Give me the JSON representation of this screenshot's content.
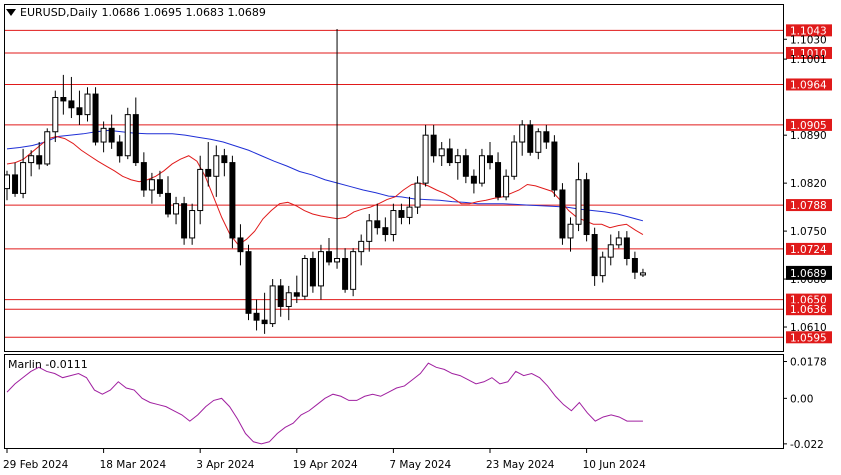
{
  "header": {
    "symbol": "EURUSD,Daily",
    "ohlc": "1.0686 1.0695 1.0683 1.0689"
  },
  "indicator": {
    "label": "Marlin -0.0111",
    "scale": [
      "0.0178",
      "0.00",
      "-0.022"
    ]
  },
  "colors": {
    "bull": "#ffffff",
    "bear": "#000000",
    "ma_slow": "#1f2fd6",
    "ma_fast": "#e01a1a",
    "level": "#e01a1a",
    "marlin": "#a020a0"
  },
  "chart_data": {
    "type": "candlestick",
    "price_axis_ticks": [
      "1.1030",
      "1.1001",
      "1.0890",
      "1.0820",
      "1.0750",
      "1.0680",
      "1.0610"
    ],
    "current_price": "1.0689",
    "levels": [
      "1.1043",
      "1.1010",
      "1.0964",
      "1.0905",
      "1.0788",
      "1.0724",
      "1.0650",
      "1.0636",
      "1.0595"
    ],
    "x_labels": [
      "29 Feb 2024",
      "18 Mar 2024",
      "3 Apr 2024",
      "19 Apr 2024",
      "7 May 2024",
      "23 May 2024",
      "10 Jun 2024"
    ],
    "ylim": [
      1.0575,
      1.108
    ],
    "candles": [
      [
        1.0812,
        1.0838,
        1.0795,
        1.0832
      ],
      [
        1.0832,
        1.085,
        1.08,
        1.0805
      ],
      [
        1.0805,
        1.087,
        1.0798,
        1.085
      ],
      [
        1.085,
        1.0868,
        1.083,
        1.086
      ],
      [
        1.086,
        1.088,
        1.084,
        1.0848
      ],
      [
        1.0848,
        1.09,
        1.0845,
        1.0895
      ],
      [
        1.0895,
        1.0955,
        1.088,
        1.0945
      ],
      [
        1.0945,
        1.0978,
        1.092,
        1.094
      ],
      [
        1.094,
        1.0975,
        1.0915,
        1.093
      ],
      [
        1.093,
        1.0955,
        1.0905,
        1.092
      ],
      [
        1.092,
        1.096,
        1.091,
        1.095
      ],
      [
        1.095,
        1.096,
        1.0875,
        1.088
      ],
      [
        1.088,
        1.091,
        1.0865,
        1.09
      ],
      [
        1.09,
        1.092,
        1.087,
        1.088
      ],
      [
        1.088,
        1.089,
        1.085,
        1.086
      ],
      [
        1.086,
        1.093,
        1.0855,
        1.092
      ],
      [
        1.092,
        1.0945,
        1.0845,
        1.085
      ],
      [
        1.085,
        1.0865,
        1.08,
        1.081
      ],
      [
        1.081,
        1.0835,
        1.079,
        1.0825
      ],
      [
        1.0825,
        1.0838,
        1.08,
        1.0805
      ],
      [
        1.0805,
        1.083,
        1.077,
        1.0775
      ],
      [
        1.0775,
        1.08,
        1.076,
        1.079
      ],
      [
        1.079,
        1.08,
        1.073,
        1.074
      ],
      [
        1.074,
        1.079,
        1.073,
        1.078
      ],
      [
        1.078,
        1.086,
        1.076,
        1.084
      ],
      [
        1.084,
        1.088,
        1.0815,
        1.083
      ],
      [
        1.083,
        1.0875,
        1.08,
        1.086
      ],
      [
        1.086,
        1.087,
        1.083,
        1.085
      ],
      [
        1.085,
        1.086,
        1.0725,
        1.074
      ],
      [
        1.074,
        1.076,
        1.07,
        1.072
      ],
      [
        1.072,
        1.073,
        1.062,
        1.063
      ],
      [
        1.063,
        1.065,
        1.0605,
        1.062
      ],
      [
        1.062,
        1.066,
        1.06,
        1.0615
      ],
      [
        1.0615,
        1.068,
        1.061,
        1.067
      ],
      [
        1.067,
        1.068,
        1.0625,
        1.064
      ],
      [
        1.064,
        1.067,
        1.062,
        1.066
      ],
      [
        1.066,
        1.0685,
        1.0645,
        1.0655
      ],
      [
        1.0655,
        1.0715,
        1.065,
        1.071
      ],
      [
        1.071,
        1.072,
        1.066,
        1.067
      ],
      [
        1.067,
        1.073,
        1.065,
        1.072
      ],
      [
        1.072,
        1.074,
        1.07,
        1.0705
      ],
      [
        1.0705,
        1.1045,
        1.0695,
        1.071
      ],
      [
        1.071,
        1.0725,
        1.066,
        1.0665
      ],
      [
        1.0665,
        1.0725,
        1.0655,
        1.072
      ],
      [
        1.072,
        1.0745,
        1.07,
        1.0735
      ],
      [
        1.0735,
        1.0775,
        1.072,
        1.0765
      ],
      [
        1.0765,
        1.079,
        1.0745,
        1.0755
      ],
      [
        1.0755,
        1.077,
        1.0735,
        1.0745
      ],
      [
        1.0745,
        1.079,
        1.0735,
        1.078
      ],
      [
        1.078,
        1.079,
        1.076,
        1.077
      ],
      [
        1.077,
        1.08,
        1.076,
        1.0785
      ],
      [
        1.0785,
        1.083,
        1.0775,
        1.082
      ],
      [
        1.082,
        1.0905,
        1.0815,
        1.089
      ],
      [
        1.089,
        1.0905,
        1.085,
        1.086
      ],
      [
        1.086,
        1.088,
        1.0845,
        1.087
      ],
      [
        1.087,
        1.0885,
        1.0845,
        1.085
      ],
      [
        1.085,
        1.087,
        1.0825,
        1.086
      ],
      [
        1.086,
        1.087,
        1.082,
        1.083
      ],
      [
        1.083,
        1.084,
        1.0805,
        1.082
      ],
      [
        1.082,
        1.087,
        1.0815,
        1.086
      ],
      [
        1.086,
        1.088,
        1.084,
        1.085
      ],
      [
        1.085,
        1.0865,
        1.0795,
        1.08
      ],
      [
        1.08,
        1.084,
        1.0795,
        1.083
      ],
      [
        1.083,
        1.089,
        1.0825,
        1.088
      ],
      [
        1.088,
        1.0912,
        1.086,
        1.0905
      ],
      [
        1.0905,
        1.0912,
        1.086,
        1.0865
      ],
      [
        1.0865,
        1.09,
        1.0855,
        1.0895
      ],
      [
        1.0895,
        1.0905,
        1.087,
        1.088
      ],
      [
        1.088,
        1.089,
        1.08,
        1.081
      ],
      [
        1.081,
        1.082,
        1.073,
        1.074
      ],
      [
        1.074,
        1.077,
        1.072,
        1.076
      ],
      [
        1.076,
        1.085,
        1.075,
        1.0825
      ],
      [
        1.0825,
        1.0835,
        1.0735,
        1.0745
      ],
      [
        1.0745,
        1.0755,
        1.067,
        1.0685
      ],
      [
        1.0685,
        1.072,
        1.0675,
        1.0712
      ],
      [
        1.0712,
        1.0745,
        1.07,
        1.073
      ],
      [
        1.073,
        1.075,
        1.0725,
        1.074
      ],
      [
        1.074,
        1.075,
        1.07,
        1.071
      ],
      [
        1.071,
        1.072,
        1.068,
        1.069
      ],
      [
        1.0686,
        1.0695,
        1.0683,
        1.0689
      ]
    ],
    "ma_slow": [
      1.087,
      1.0872,
      1.0875,
      1.088,
      1.0888,
      1.089,
      1.0892,
      1.0895,
      1.0897,
      1.0895,
      1.0893,
      1.0892,
      1.0892,
      1.0892,
      1.089,
      1.0887,
      1.0884,
      1.088,
      1.0874,
      1.0868,
      1.086,
      1.0852,
      1.0845,
      1.0837,
      1.0832,
      1.0825,
      1.082,
      1.0815,
      1.081,
      1.0806,
      1.0801,
      1.08,
      1.0797,
      1.0796,
      1.0795,
      1.0793,
      1.0792,
      1.079,
      1.079,
      1.079,
      1.0789,
      1.0788,
      1.0787,
      1.0786,
      1.0785,
      1.0782,
      1.078,
      1.0778,
      1.0775,
      1.077,
      1.0765
    ],
    "ma_slow_start": 0,
    "ma_fast": [
      1.0848,
      1.085,
      1.0855,
      1.0865,
      1.0875,
      1.0885,
      1.0888,
      1.0885,
      1.0878,
      1.0868,
      1.086,
      1.0852,
      1.0845,
      1.0838,
      1.083,
      1.0825,
      1.0822,
      1.0825,
      1.083,
      1.0838,
      1.0848,
      1.0855,
      1.086,
      1.0852,
      1.083,
      1.08,
      1.077,
      1.0745,
      1.073,
      1.0738,
      1.075,
      1.0768,
      1.078,
      1.079,
      1.0792,
      1.0787,
      1.078,
      1.0775,
      1.0772,
      1.077,
      1.0768,
      1.077,
      1.0778,
      1.0782,
      1.0785,
      1.079,
      1.0796,
      1.08,
      1.081,
      1.0818,
      1.082,
      1.0816,
      1.081,
      1.0805,
      1.0798,
      1.079,
      1.079,
      1.0793,
      1.0795,
      1.0798,
      1.08,
      1.0805,
      1.081,
      1.0818,
      1.0816,
      1.0812,
      1.0808,
      1.0795,
      1.078,
      1.077,
      1.0765,
      1.076,
      1.076,
      1.0755,
      1.0758,
      1.076,
      1.0752,
      1.0745
    ],
    "ma_fast_start": 0,
    "marlin": [
      0.003,
      0.007,
      0.01,
      0.013,
      0.015,
      0.013,
      0.012,
      0.01,
      0.011,
      0.012,
      0.01,
      0.004,
      0.002,
      0.004,
      0.008,
      0.005,
      0.004,
      0.0,
      -0.002,
      -0.003,
      -0.004,
      -0.006,
      -0.008,
      -0.011,
      -0.008,
      -0.004,
      -0.001,
      0.0,
      -0.004,
      -0.01,
      -0.017,
      -0.021,
      -0.022,
      -0.021,
      -0.017,
      -0.014,
      -0.012,
      -0.008,
      -0.006,
      -0.003,
      0.0,
      0.002,
      0.001,
      -0.001,
      -0.001,
      0.001,
      0.002,
      0.001,
      0.003,
      0.005,
      0.006,
      0.009,
      0.012,
      0.017,
      0.015,
      0.014,
      0.012,
      0.011,
      0.009,
      0.007,
      0.008,
      0.01,
      0.007,
      0.008,
      0.013,
      0.011,
      0.012,
      0.01,
      0.006,
      0.001,
      -0.003,
      -0.006,
      -0.002,
      -0.007,
      -0.011,
      -0.009,
      -0.008,
      -0.009,
      -0.011,
      -0.011,
      -0.011
    ]
  }
}
